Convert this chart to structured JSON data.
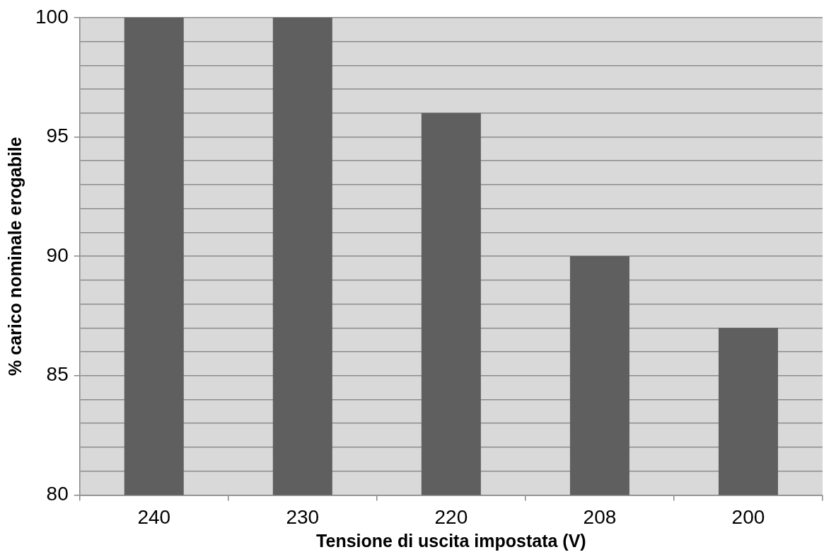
{
  "chart_data": {
    "type": "bar",
    "xlabel": "Tensione di uscita impostata (V)",
    "ylabel": "% carico nominale erogabile",
    "categories": [
      "240",
      "230",
      "220",
      "208",
      "200"
    ],
    "values": [
      100,
      100,
      96,
      90,
      87
    ],
    "color": "#5f5f5f",
    "ylim": [
      80,
      100
    ],
    "yticks": [
      80,
      {
        "value": 81,
        "label": null
      },
      {
        "value": 82,
        "label": null
      },
      {
        "value": 83,
        "label": null
      },
      {
        "value": 84,
        "label": null
      },
      85,
      {
        "value": 86,
        "label": null
      },
      {
        "value": 87,
        "label": null
      },
      {
        "value": 88,
        "label": null
      },
      {
        "value": 89,
        "label": null
      },
      90,
      {
        "value": 91,
        "label": null
      },
      {
        "value": 92,
        "label": null
      },
      {
        "value": 93,
        "label": null
      },
      {
        "value": 94,
        "label": null
      },
      95,
      {
        "value": 96,
        "label": null
      },
      {
        "value": 97,
        "label": null
      },
      {
        "value": 98,
        "label": null
      },
      {
        "value": 99,
        "label": null
      },
      100
    ],
    "grid": "y",
    "legend": false
  }
}
